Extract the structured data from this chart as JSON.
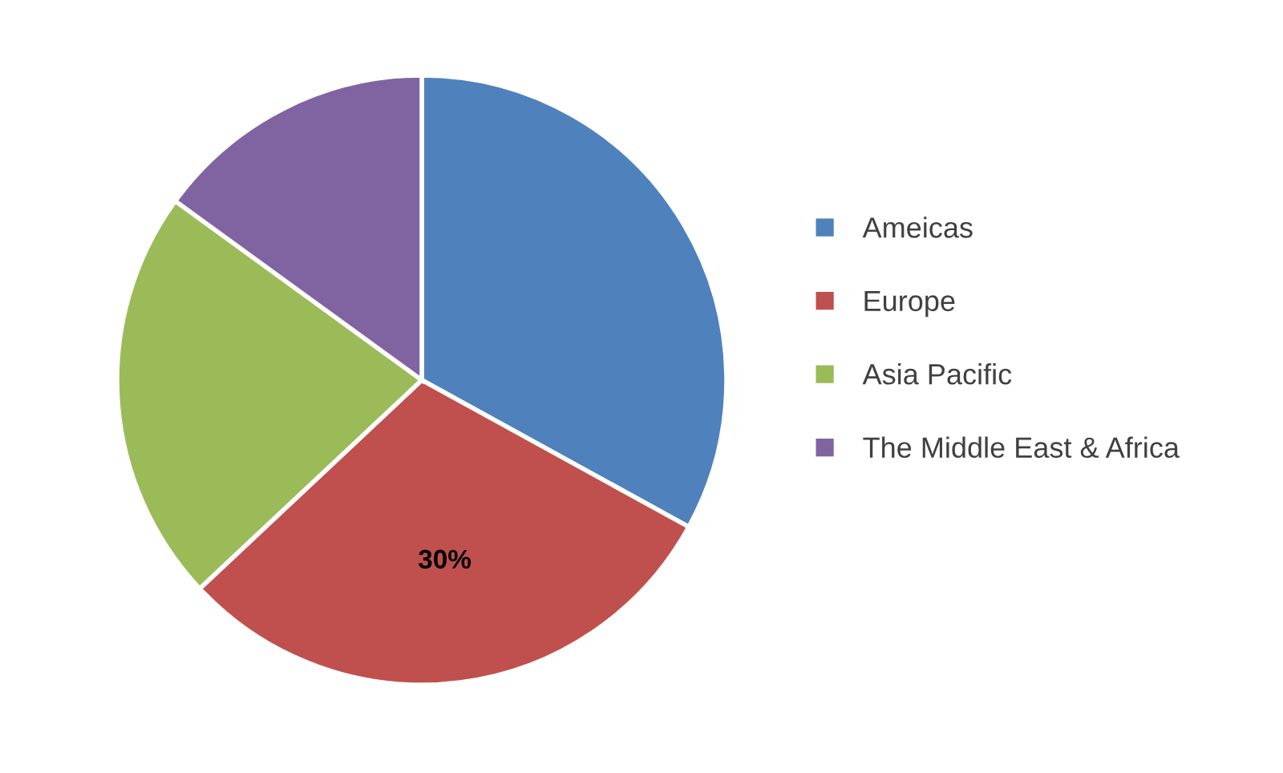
{
  "chart_data": {
    "type": "pie",
    "categories": [
      "Ameicas",
      "Europe",
      "Asia Pacific",
      "The Middle East & Africa"
    ],
    "values": [
      33,
      30,
      22,
      15
    ],
    "colors": [
      "#4f81bd",
      "#c0504d",
      "#9bbb59",
      "#8064a2"
    ],
    "value_labels": [
      null,
      "30%",
      null,
      null
    ],
    "legend": "right"
  }
}
